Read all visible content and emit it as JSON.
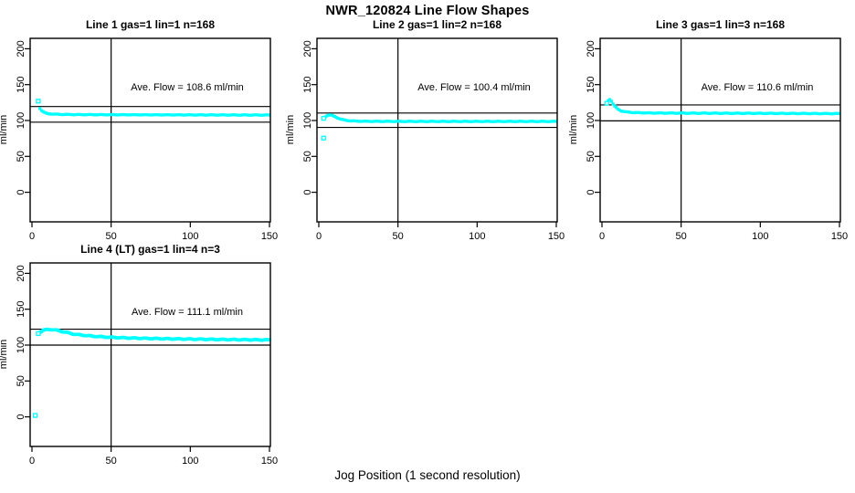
{
  "figure": {
    "title": "NWR_120824  Line Flow Shapes",
    "xlabel": "Jog Position (1 second resolution)",
    "background": "#ffffff",
    "foreground": "#000000",
    "point_color": "#00FFFF"
  },
  "axes": {
    "ylabel": "ml/min",
    "x_ticks": [
      0,
      50,
      100,
      150
    ],
    "y_ticks": [
      0,
      50,
      100,
      150,
      200
    ],
    "x_range": [
      0,
      150
    ],
    "y_range": [
      -40,
      214
    ]
  },
  "chart_data": [
    {
      "type": "scatter",
      "title": "Line 1 gas=1 lin=1 n=168",
      "ave_label": "Ave. Flow =  108.6  ml/min",
      "ave_flow": 108.6,
      "ref_lines": [
        119.5,
        97.7
      ],
      "vline_x": 50,
      "jitter": 0.25,
      "marker": 3.2,
      "series": [
        [
          5,
          117
        ],
        [
          6,
          114
        ],
        [
          8,
          111
        ],
        [
          10,
          109.5
        ],
        [
          13,
          109
        ],
        [
          18,
          108.5
        ],
        [
          30,
          108.2
        ],
        [
          60,
          108
        ],
        [
          100,
          107.8
        ],
        [
          150,
          107.6
        ]
      ],
      "open_points": [
        [
          4,
          127
        ]
      ]
    },
    {
      "type": "scatter",
      "title": "Line 2 gas=1 lin=2 n=168",
      "ave_label": "Ave. Flow =  100.4  ml/min",
      "ave_flow": 100.4,
      "ref_lines": [
        110.4,
        90.4
      ],
      "vline_x": 50,
      "jitter": 0.25,
      "marker": 3.2,
      "series": [
        [
          4,
          105
        ],
        [
          5,
          106.5
        ],
        [
          6,
          107.5
        ],
        [
          7,
          107.8
        ],
        [
          8,
          107.3
        ],
        [
          10,
          105.5
        ],
        [
          12,
          103.5
        ],
        [
          14,
          101.8
        ],
        [
          17,
          100.3
        ],
        [
          20,
          99.5
        ],
        [
          25,
          99
        ],
        [
          35,
          98.8
        ],
        [
          60,
          98.7
        ],
        [
          100,
          98.7
        ],
        [
          150,
          98.7
        ]
      ],
      "open_points": [
        [
          3,
          103
        ],
        [
          3,
          75.5
        ]
      ]
    },
    {
      "type": "scatter",
      "title": "Line 3 gas=1 lin=3 n=168",
      "ave_label": "Ave. Flow =  110.6  ml/min",
      "ave_flow": 110.6,
      "ref_lines": [
        121.7,
        99.5
      ],
      "vline_x": 50,
      "jitter": 0.3,
      "marker": 3.2,
      "series": [
        [
          4,
          128
        ],
        [
          5,
          129.5
        ],
        [
          6,
          127
        ],
        [
          7,
          123
        ],
        [
          8,
          120
        ],
        [
          10,
          116
        ],
        [
          12,
          113.5
        ],
        [
          15,
          112
        ],
        [
          20,
          111
        ],
        [
          30,
          110.5
        ],
        [
          60,
          110.2
        ],
        [
          100,
          110
        ],
        [
          150,
          109.6
        ]
      ],
      "open_points": [
        [
          3,
          124
        ]
      ]
    },
    {
      "type": "scatter",
      "title": "Line 4 (LT) gas=1 lin=4 n=3",
      "ave_label": "Ave. Flow =  111.1  ml/min",
      "ave_flow": 111.1,
      "ref_lines": [
        122.2,
        100.0
      ],
      "vline_x": 50,
      "jitter": 0.5,
      "marker": 3.6,
      "series": [
        [
          5,
          118
        ],
        [
          7,
          120.5
        ],
        [
          9,
          121.5
        ],
        [
          12,
          121.8
        ],
        [
          15,
          121
        ],
        [
          18,
          119.5
        ],
        [
          22,
          117.5
        ],
        [
          26,
          115.5
        ],
        [
          31,
          114
        ],
        [
          38,
          112.5
        ],
        [
          48,
          111
        ],
        [
          60,
          110
        ],
        [
          75,
          109.2
        ],
        [
          95,
          108.5
        ],
        [
          120,
          107.8
        ],
        [
          150,
          107.2
        ]
      ],
      "open_points": [
        [
          2,
          2
        ],
        [
          4,
          116
        ]
      ]
    }
  ]
}
